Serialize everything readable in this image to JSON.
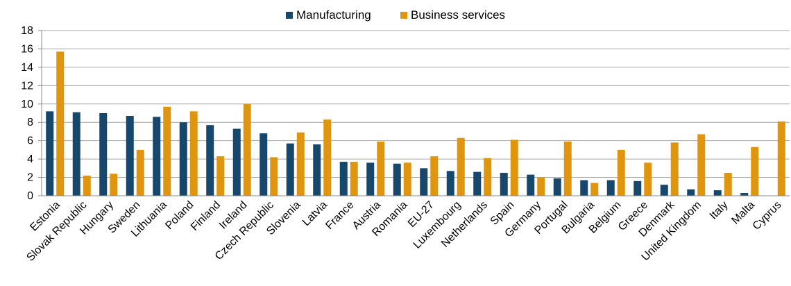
{
  "chart_data": {
    "type": "bar",
    "title": "",
    "xlabel": "",
    "ylabel": "",
    "ylim": [
      0,
      18
    ],
    "yticks": [
      0,
      2,
      4,
      6,
      8,
      10,
      12,
      14,
      16,
      18
    ],
    "grid": true,
    "legend_position": "top-center",
    "categories": [
      "Estonia",
      "Slovak Republic",
      "Hungary",
      "Sweden",
      "Lithuania",
      "Poland",
      "Finland",
      "Ireland",
      "Czech Republic",
      "Slovenia",
      "Latvia",
      "France",
      "Austria",
      "Romania",
      "EU-27",
      "Luxembourg",
      "Netherlands",
      "Spain",
      "Germany",
      "Portugal",
      "Bulgaria",
      "Belgium",
      "Greece",
      "Denmark",
      "United Kingdom",
      "Italy",
      "Malta",
      "Cyprus"
    ],
    "series": [
      {
        "name": "Manufacturing",
        "color": "#17476b",
        "values": [
          9.2,
          9.1,
          9.0,
          8.7,
          8.6,
          8.0,
          7.7,
          7.3,
          6.8,
          5.7,
          5.6,
          3.7,
          3.6,
          3.5,
          3.0,
          2.7,
          2.6,
          2.5,
          2.3,
          1.9,
          1.7,
          1.7,
          1.6,
          1.2,
          0.7,
          0.6,
          0.3,
          0.0
        ]
      },
      {
        "name": "Business services",
        "color": "#e0950e",
        "values": [
          15.7,
          2.2,
          2.4,
          5.0,
          9.7,
          9.2,
          4.3,
          10.0,
          4.2,
          6.9,
          8.3,
          3.7,
          5.9,
          3.6,
          4.3,
          6.3,
          4.1,
          6.1,
          2.0,
          5.9,
          1.4,
          5.0,
          3.6,
          5.8,
          6.7,
          2.5,
          5.3,
          8.1
        ]
      }
    ]
  }
}
